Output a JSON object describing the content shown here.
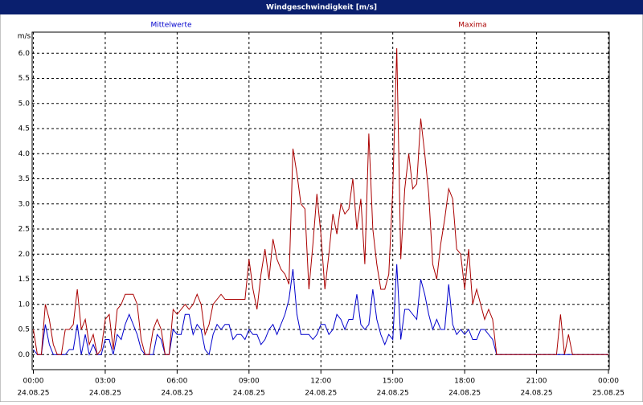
{
  "chart_data": {
    "type": "line",
    "title": "Windgeschwindigkeit [m/s]",
    "y_unit": "m/s",
    "x": [
      0,
      10,
      20,
      30,
      40,
      50,
      60,
      70,
      80,
      90,
      100,
      110,
      120,
      130,
      140,
      150,
      160,
      170,
      180,
      190,
      200,
      210,
      220,
      230,
      240,
      250,
      260,
      270,
      280,
      290,
      300,
      310,
      320,
      330,
      340,
      350,
      360,
      370,
      380,
      390,
      400,
      410,
      420,
      430,
      440,
      450,
      460,
      470,
      480,
      490,
      500,
      510,
      520,
      530,
      540,
      550,
      560,
      570,
      580,
      590,
      600,
      610,
      620,
      630,
      640,
      650,
      660,
      670,
      680,
      690,
      700,
      710,
      720,
      730,
      740,
      750,
      760,
      770,
      780,
      790,
      800,
      810,
      820,
      830,
      840,
      850,
      860,
      870,
      880,
      890,
      900,
      910,
      920,
      930,
      940,
      950,
      960,
      970,
      980,
      990,
      1000,
      1010,
      1020,
      1030,
      1040,
      1050,
      1060,
      1070,
      1080,
      1090,
      1100,
      1110,
      1120,
      1130,
      1140,
      1150,
      1160,
      1170,
      1180,
      1190,
      1200,
      1210,
      1220,
      1230,
      1240,
      1250,
      1260,
      1270,
      1280,
      1290,
      1300,
      1310,
      1320,
      1330,
      1340,
      1350,
      1360,
      1370,
      1380,
      1390,
      1400,
      1410,
      1420,
      1430,
      1440
    ],
    "series": [
      {
        "name": "Mittelwerte",
        "color": "#0000cc",
        "values": [
          0.1,
          0,
          0,
          0.6,
          0.2,
          0,
          0,
          0,
          0,
          0.1,
          0.1,
          0.6,
          0,
          0.4,
          0,
          0.2,
          0,
          0,
          0.3,
          0.3,
          0,
          0.4,
          0.3,
          0.6,
          0.8,
          0.6,
          0.4,
          0.1,
          0,
          0,
          0,
          0.4,
          0.3,
          0,
          0,
          0.5,
          0.4,
          0.4,
          0.8,
          0.8,
          0.4,
          0.6,
          0.5,
          0.1,
          0,
          0.4,
          0.6,
          0.5,
          0.6,
          0.6,
          0.3,
          0.4,
          0.4,
          0.3,
          0.5,
          0.4,
          0.4,
          0.2,
          0.3,
          0.5,
          0.6,
          0.4,
          0.6,
          0.8,
          1.1,
          1.7,
          0.8,
          0.4,
          0.4,
          0.4,
          0.3,
          0.4,
          0.6,
          0.6,
          0.4,
          0.5,
          0.8,
          0.7,
          0.5,
          0.7,
          0.7,
          1.2,
          0.6,
          0.5,
          0.6,
          1.3,
          0.7,
          0.4,
          0.2,
          0.4,
          0.3,
          1.8,
          0.3,
          0.9,
          0.9,
          0.8,
          0.7,
          1.5,
          1.2,
          0.8,
          0.5,
          0.7,
          0.5,
          0.5,
          1.4,
          0.6,
          0.4,
          0.5,
          0.4,
          0.5,
          0.3,
          0.3,
          0.5,
          0.5,
          0.4,
          0.3,
          0,
          0,
          0,
          0,
          0,
          0,
          0,
          0,
          0,
          0,
          0,
          0,
          0,
          0,
          0,
          0,
          0,
          0,
          0,
          0,
          0,
          0,
          0,
          0,
          0,
          0,
          0,
          0,
          0
        ]
      },
      {
        "name": "Maxima",
        "color": "#aa0000",
        "values": [
          0.5,
          0,
          0,
          1.0,
          0.7,
          0.2,
          0,
          0,
          0.5,
          0.5,
          0.6,
          1.3,
          0.5,
          0.7,
          0.2,
          0.4,
          0,
          0.1,
          0.7,
          0.8,
          0.1,
          0.9,
          1.0,
          1.2,
          1.2,
          1.2,
          1.0,
          0.3,
          0,
          0,
          0.5,
          0.7,
          0.5,
          0,
          0,
          0.9,
          0.8,
          0.9,
          1.0,
          0.9,
          1.0,
          1.2,
          1.0,
          0.4,
          0.6,
          1.0,
          1.1,
          1.2,
          1.1,
          1.1,
          1.1,
          1.1,
          1.1,
          1.1,
          1.9,
          1.3,
          0.9,
          1.6,
          2.1,
          1.5,
          2.3,
          1.9,
          1.7,
          1.6,
          1.4,
          4.1,
          3.6,
          3.0,
          2.9,
          1.3,
          2.2,
          3.2,
          2.4,
          1.3,
          2.0,
          2.8,
          2.4,
          3.0,
          2.8,
          2.9,
          3.5,
          2.5,
          3.1,
          1.8,
          4.4,
          2.5,
          1.8,
          1.3,
          1.3,
          1.6,
          3.3,
          6.1,
          1.9,
          3.3,
          4.0,
          3.3,
          3.4,
          4.7,
          4.0,
          3.2,
          1.8,
          1.5,
          2.2,
          2.7,
          3.3,
          3.1,
          2.1,
          2.0,
          1.3,
          2.1,
          1.0,
          1.3,
          1.0,
          0.7,
          0.9,
          0.7,
          0,
          0,
          0,
          0,
          0,
          0,
          0,
          0,
          0,
          0,
          0,
          0,
          0,
          0,
          0,
          0,
          0.8,
          0,
          0.4,
          0,
          0,
          0,
          0,
          0,
          0,
          0,
          0,
          0,
          0
        ]
      }
    ],
    "xlim": [
      -3,
      1442
    ],
    "xticks": [
      {
        "value": 0,
        "label": "00:00",
        "date": "24.08.25"
      },
      {
        "value": 180,
        "label": "03:00",
        "date": "24.08.25"
      },
      {
        "value": 360,
        "label": "06:00",
        "date": "24.08.25"
      },
      {
        "value": 540,
        "label": "09:00",
        "date": "24.08.25"
      },
      {
        "value": 720,
        "label": "12:00",
        "date": "24.08.25"
      },
      {
        "value": 900,
        "label": "15:00",
        "date": "24.08.25"
      },
      {
        "value": 1080,
        "label": "18:00",
        "date": "24.08.25"
      },
      {
        "value": 1260,
        "label": "21:00",
        "date": "24.08.25"
      },
      {
        "value": 1440,
        "label": "00:00",
        "date": "25.08.25"
      }
    ],
    "ylim": [
      -0.3,
      6.42
    ],
    "yticks": [
      {
        "value": 0,
        "label": "0.0"
      },
      0.5,
      {
        "value": 1,
        "label": "1.0"
      },
      1.5,
      {
        "value": 2,
        "label": "2.0"
      },
      2.5,
      {
        "value": 3,
        "label": "3.0"
      },
      3.5,
      {
        "value": 4,
        "label": "4.0"
      },
      4.5,
      {
        "value": 5,
        "label": "5.0"
      },
      5.5,
      {
        "value": 6,
        "label": "6.0"
      }
    ],
    "grid": true
  }
}
